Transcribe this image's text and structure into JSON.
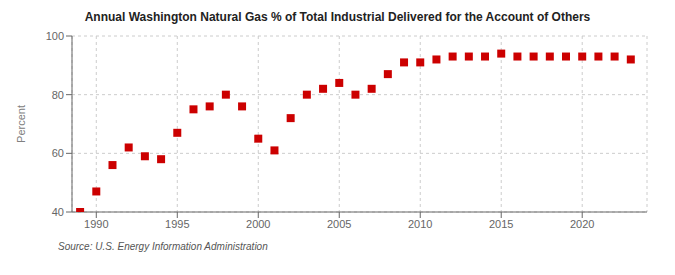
{
  "chart_data": {
    "type": "scatter",
    "title": "Annual Washington Natural Gas % of Total Industrial Delivered for the Account of Others",
    "y_label": "Percent",
    "annotations": [
      "Source: U.S. Energy Information Administration"
    ],
    "x": [
      1989,
      1990,
      1991,
      1992,
      1993,
      1994,
      1995,
      1996,
      1997,
      1998,
      1999,
      2000,
      2001,
      2002,
      2003,
      2004,
      2005,
      2006,
      2007,
      2008,
      2009,
      2010,
      2011,
      2012,
      2013,
      2014,
      2015,
      2016,
      2017,
      2018,
      2019,
      2020,
      2021,
      2022,
      2023
    ],
    "values": [
      40,
      47,
      56,
      62,
      59,
      58,
      67,
      75,
      76,
      80,
      76,
      65,
      61,
      72,
      80,
      82,
      84,
      80,
      82,
      87,
      91,
      91,
      92,
      93,
      93,
      93,
      94,
      93,
      93,
      93,
      93,
      93,
      93,
      93,
      92
    ],
    "color": "#cc0000",
    "marker": "square",
    "xlim": [
      1988.5,
      2024
    ],
    "xticks": [
      1990,
      1995,
      2000,
      2005,
      2010,
      2015,
      2020
    ],
    "ylim": [
      40,
      100
    ],
    "yticks": [
      40,
      60,
      80,
      100
    ],
    "grid": true
  }
}
